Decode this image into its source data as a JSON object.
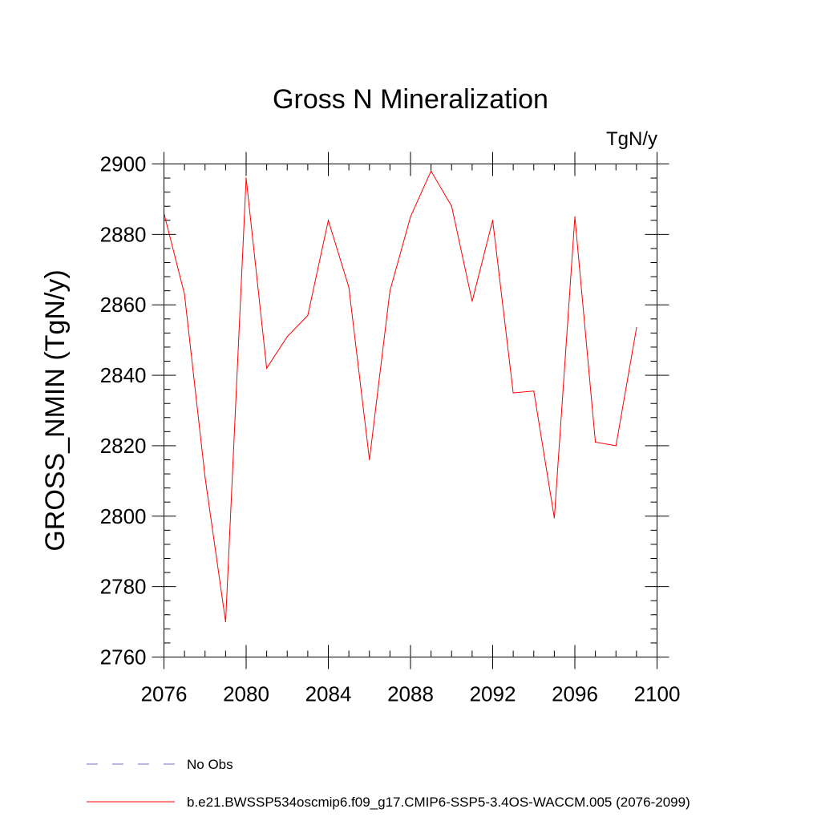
{
  "chart_data": {
    "type": "line",
    "title": "Gross N Mineralization",
    "units_label": "TgN/y",
    "xlabel": "",
    "ylabel": "GROSS_NMIN  (TgN/y)",
    "xlim": [
      2076,
      2100
    ],
    "ylim": [
      2760,
      2900
    ],
    "x_ticks": [
      2076,
      2080,
      2084,
      2088,
      2092,
      2096,
      2100
    ],
    "y_ticks": [
      2760,
      2780,
      2800,
      2820,
      2840,
      2860,
      2880,
      2900
    ],
    "x_minor_step": 1,
    "y_minor_step": 4,
    "series": [
      {
        "name": "b.e21.BWSSP534oscmip6.f09_g17.CMIP6-SSP5-3.4OS-WACCM.005 (2076-2099)",
        "color": "#ff0000",
        "x": [
          2076,
          2077,
          2078,
          2079,
          2080,
          2081,
          2082,
          2083,
          2084,
          2085,
          2086,
          2087,
          2088,
          2089,
          2090,
          2091,
          2092,
          2093,
          2094,
          2095,
          2096,
          2097,
          2098,
          2099
        ],
        "values": [
          2886,
          2863,
          2811,
          2770,
          2896,
          2842,
          2851,
          2857,
          2884,
          2865,
          2816,
          2864,
          2885,
          2898,
          2888,
          2861,
          2884,
          2835,
          2835.5,
          2799.5,
          2885,
          2821,
          2820,
          2853.5
        ]
      }
    ],
    "legend": [
      {
        "label": "No Obs",
        "color": "#7070c0",
        "style": "dashed"
      },
      {
        "label": "b.e21.BWSSP534oscmip6.f09_g17.CMIP6-SSP5-3.4OS-WACCM.005 (2076-2099)",
        "color": "#ff0000",
        "style": "solid"
      }
    ],
    "legend_position": "bottom-left",
    "grid": false
  }
}
